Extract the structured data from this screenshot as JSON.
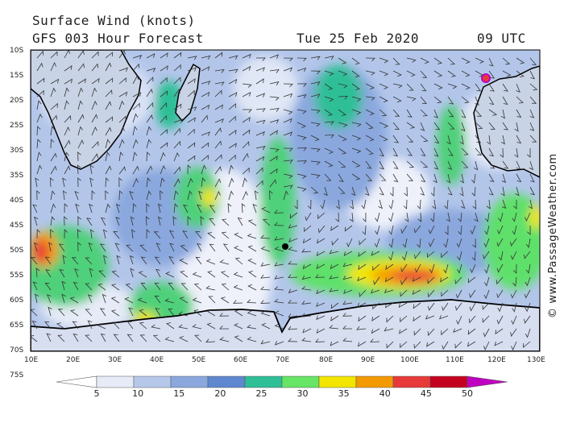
{
  "header": {
    "title": "Surface Wind (knots)",
    "model": "GFS 003 Hour Forecast",
    "date": "Tue 25 Feb 2020",
    "time": "09 UTC"
  },
  "watermark": "© www.PassageWeather.com",
  "lat_labels": [
    "10S",
    "15S",
    "20S",
    "25S",
    "30S",
    "35S",
    "40S",
    "45S",
    "50S",
    "55S",
    "60S",
    "65S",
    "70S",
    "75S"
  ],
  "lon_labels": [
    "10E",
    "20E",
    "30E",
    "40E",
    "50E",
    "60E",
    "70E",
    "80E",
    "90E",
    "100E",
    "110E",
    "120E",
    "130E"
  ],
  "colorbar": {
    "ticks": [
      "5",
      "10",
      "15",
      "20",
      "25",
      "30",
      "35",
      "40",
      "45",
      "50"
    ],
    "colors": [
      "#e6ebf7",
      "#b6c8ea",
      "#8aa8de",
      "#5f87cf",
      "#2fbf97",
      "#66e566",
      "#f2e600",
      "#f39a00",
      "#e83a3a",
      "#c4001f",
      "#c000c0"
    ]
  }
}
